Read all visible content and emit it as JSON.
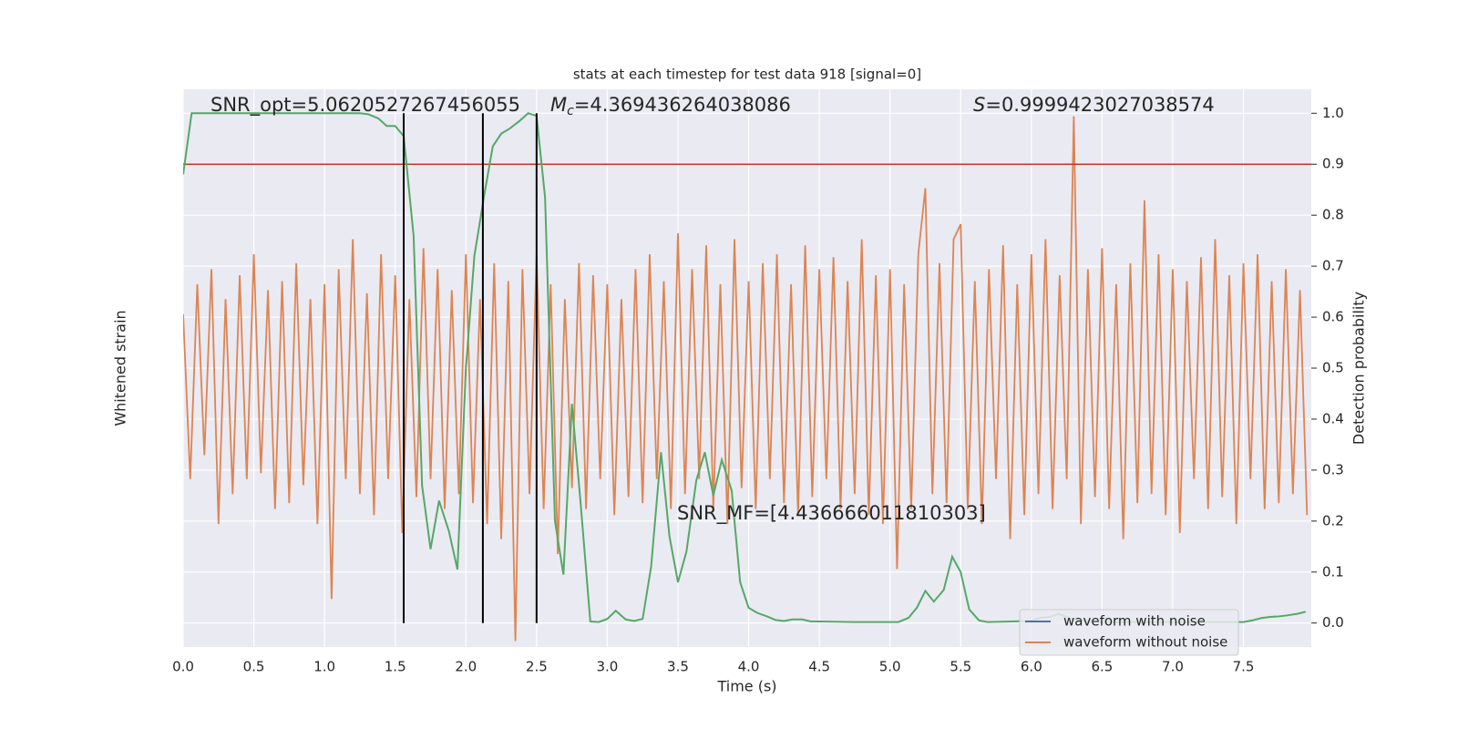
{
  "chart_data": {
    "type": "line",
    "title": "stats at each timestep for test data 918 [signal=0]",
    "x_label": "Time (s)",
    "y_label": "Whitened strain",
    "y2_label": "Detection probability",
    "xlim": [
      0,
      7.98
    ],
    "xticks": [
      {
        "value": 0,
        "label": "0.0"
      },
      0.5,
      {
        "value": 1,
        "label": "1.0"
      },
      1.5,
      {
        "value": 2,
        "label": "2.0"
      },
      2.5,
      {
        "value": 3,
        "label": "3.0"
      },
      3.5,
      {
        "value": 4,
        "label": "4.0"
      },
      4.5,
      {
        "value": 5,
        "label": "5.0"
      },
      5.5,
      {
        "value": 6,
        "label": "6.0"
      },
      6.5,
      {
        "value": 7,
        "label": "7.0"
      },
      7.5
    ],
    "ylim": [
      -0.86,
      1.0
    ],
    "y2lim": [
      -0.047,
      1.047
    ],
    "y2ticks": [
      {
        "value": 0,
        "label": "0.0"
      },
      0.1,
      0.2,
      0.3,
      0.4,
      0.5,
      0.6,
      0.7,
      0.8,
      0.9,
      {
        "value": 1,
        "label": "1.0"
      }
    ],
    "grid": true,
    "legend_position": "lower right",
    "series": [
      {
        "name": "waveform with noise",
        "color": "#4c72b0"
      },
      {
        "name": "waveform without noise",
        "color": "#dd8452",
        "x": [
          0,
          0.05,
          0.1,
          0.15,
          0.2,
          0.25,
          0.3,
          0.35,
          0.4,
          0.45,
          0.5,
          0.55,
          0.6,
          0.65,
          0.7,
          0.75,
          0.8,
          0.85,
          0.9,
          0.95,
          1,
          1.05,
          1.1,
          1.15,
          1.2,
          1.25,
          1.3,
          1.35,
          1.4,
          1.45,
          1.5,
          1.55,
          1.6,
          1.65,
          1.7,
          1.75,
          1.8,
          1.85,
          1.9,
          1.95,
          2,
          2.05,
          2.1,
          2.15,
          2.2,
          2.25,
          2.3,
          2.35,
          2.4,
          2.45,
          2.5,
          2.55,
          2.6,
          2.65,
          2.7,
          2.75,
          2.8,
          2.85,
          2.9,
          2.95,
          3,
          3.05,
          3.1,
          3.15,
          3.2,
          3.25,
          3.3,
          3.35,
          3.4,
          3.45,
          3.5,
          3.55,
          3.6,
          3.65,
          3.7,
          3.75,
          3.8,
          3.85,
          3.9,
          3.95,
          4,
          4.05,
          4.1,
          4.15,
          4.2,
          4.25,
          4.3,
          4.35,
          4.4,
          4.45,
          4.5,
          4.55,
          4.6,
          4.65,
          4.7,
          4.75,
          4.8,
          4.85,
          4.9,
          4.95,
          5,
          5.05,
          5.1,
          5.15,
          5.2,
          5.25,
          5.3,
          5.35,
          5.4,
          5.45,
          5.5,
          5.55,
          5.6,
          5.65,
          5.7,
          5.75,
          5.8,
          5.85,
          5.9,
          5.95,
          6,
          6.05,
          6.1,
          6.15,
          6.2,
          6.25,
          6.3,
          6.35,
          6.4,
          6.45,
          6.5,
          6.55,
          6.6,
          6.65,
          6.7,
          6.75,
          6.8,
          6.85,
          6.9,
          6.95,
          7,
          7.05,
          7.1,
          7.15,
          7.2,
          7.25,
          7.3,
          7.35,
          7.4,
          7.45,
          7.5,
          7.55,
          7.6,
          7.65,
          7.7,
          7.75,
          7.8,
          7.85,
          7.9,
          7.95
        ],
        "values": [
          0.25,
          -0.3,
          0.35,
          -0.22,
          0.4,
          -0.45,
          0.3,
          -0.35,
          0.38,
          -0.3,
          0.45,
          -0.28,
          0.33,
          -0.4,
          0.36,
          -0.38,
          0.42,
          -0.32,
          0.3,
          -0.45,
          0.35,
          -0.7,
          0.4,
          -0.3,
          0.5,
          -0.35,
          0.32,
          -0.42,
          0.45,
          -0.3,
          0.38,
          -0.48,
          0.3,
          -0.36,
          0.47,
          -0.3,
          0.4,
          -0.4,
          0.33,
          -0.35,
          0.45,
          -0.38,
          0.3,
          -0.45,
          0.42,
          -0.5,
          0.36,
          -0.84,
          0.4,
          -0.35,
          0.45,
          -0.4,
          0.35,
          -0.55,
          0.3,
          -0.33,
          0.42,
          -0.4,
          0.38,
          -0.3,
          0.35,
          -0.42,
          0.3,
          -0.36,
          0.4,
          -0.38,
          0.45,
          -0.3,
          0.36,
          -0.4,
          0.52,
          -0.35,
          0.4,
          -0.3,
          0.48,
          -0.4,
          0.35,
          -0.45,
          0.5,
          -0.33,
          0.36,
          -0.4,
          0.42,
          -0.3,
          0.45,
          -0.38,
          0.35,
          -0.42,
          0.48,
          -0.36,
          0.4,
          -0.3,
          0.44,
          -0.4,
          0.36,
          -0.35,
          0.5,
          -0.42,
          0.38,
          -0.45,
          0.4,
          -0.6,
          0.35,
          -0.4,
          0.45,
          0.67,
          -0.35,
          0.42,
          -0.38,
          0.5,
          0.55,
          -0.4,
          0.36,
          -0.45,
          0.4,
          -0.3,
          0.48,
          -0.5,
          0.35,
          -0.42,
          0.45,
          -0.35,
          0.5,
          -0.4,
          0.38,
          -0.3,
          0.91,
          -0.45,
          0.4,
          -0.36,
          0.47,
          -0.4,
          0.35,
          -0.5,
          0.42,
          -0.38,
          0.63,
          -0.35,
          0.45,
          -0.42,
          0.4,
          -0.48,
          0.36,
          -0.3,
          0.44,
          -0.4,
          0.5,
          -0.36,
          0.38,
          -0.45,
          0.42,
          -0.3,
          0.45,
          -0.4,
          0.36,
          -0.38,
          0.4,
          -0.35,
          0.33,
          -0.42
        ]
      }
    ],
    "detection": {
      "color": "#55a868",
      "axis": "y2",
      "x": [
        0,
        0.06,
        0.12,
        0.25,
        0.5,
        0.75,
        1.0,
        1.25,
        1.31,
        1.38,
        1.44,
        1.5,
        1.56,
        1.63,
        1.69,
        1.75,
        1.81,
        1.88,
        1.94,
        2.0,
        2.06,
        2.13,
        2.19,
        2.25,
        2.31,
        2.38,
        2.44,
        2.5,
        2.56,
        2.63,
        2.69,
        2.75,
        2.81,
        2.88,
        2.94,
        3.0,
        3.06,
        3.13,
        3.19,
        3.25,
        3.31,
        3.38,
        3.44,
        3.5,
        3.56,
        3.63,
        3.69,
        3.75,
        3.81,
        3.88,
        3.94,
        4.0,
        4.06,
        4.13,
        4.19,
        4.25,
        4.31,
        4.38,
        4.44,
        4.5,
        4.75,
        5.0,
        5.06,
        5.13,
        5.19,
        5.25,
        5.31,
        5.38,
        5.44,
        5.5,
        5.56,
        5.63,
        5.69,
        6.0,
        6.06,
        6.13,
        6.19,
        6.25,
        6.31,
        6.5,
        7.0,
        7.5,
        7.56,
        7.63,
        7.69,
        7.75,
        7.81,
        7.88,
        7.94
      ],
      "values": [
        0.88,
        1.0,
        1.0,
        1.0,
        1.0,
        1.0,
        1.0,
        1.0,
        0.998,
        0.99,
        0.975,
        0.975,
        0.955,
        0.76,
        0.27,
        0.145,
        0.24,
        0.18,
        0.105,
        0.5,
        0.72,
        0.84,
        0.935,
        0.96,
        0.97,
        0.985,
        1.0,
        0.995,
        0.835,
        0.2,
        0.095,
        0.43,
        0.24,
        0.003,
        0.002,
        0.008,
        0.024,
        0.007,
        0.004,
        0.008,
        0.11,
        0.335,
        0.17,
        0.08,
        0.14,
        0.28,
        0.335,
        0.25,
        0.32,
        0.26,
        0.08,
        0.03,
        0.02,
        0.013,
        0.006,
        0.004,
        0.007,
        0.007,
        0.003,
        0.003,
        0.002,
        0.002,
        0.002,
        0.01,
        0.03,
        0.063,
        0.042,
        0.065,
        0.13,
        0.1,
        0.027,
        0.005,
        0.002,
        0.004,
        0.01,
        0.012,
        0.018,
        0.012,
        0.006,
        0.002,
        0.002,
        0.002,
        0.005,
        0.01,
        0.012,
        0.013,
        0.015,
        0.018,
        0.022
      ]
    },
    "threshold": {
      "value": 0.9,
      "color": "#c0392b"
    },
    "vlines": [
      {
        "x": 1.56,
        "ymin": 0,
        "ymax": 1.0
      },
      {
        "x": 2.12,
        "ymin": 0,
        "ymax": 1.0
      },
      {
        "x": 2.5,
        "ymin": 0,
        "ymax": 1.0
      }
    ],
    "annotations": [
      {
        "text": "SNR_opt=5.0620527267456055"
      },
      {
        "symbol": "M",
        "subscript": "c",
        "text": "=4.369436264038086"
      },
      {
        "symbol": "S",
        "text": "=0.9999423027038574"
      },
      {
        "text": "SNR_MF=[4.436666011810303]"
      }
    ]
  }
}
